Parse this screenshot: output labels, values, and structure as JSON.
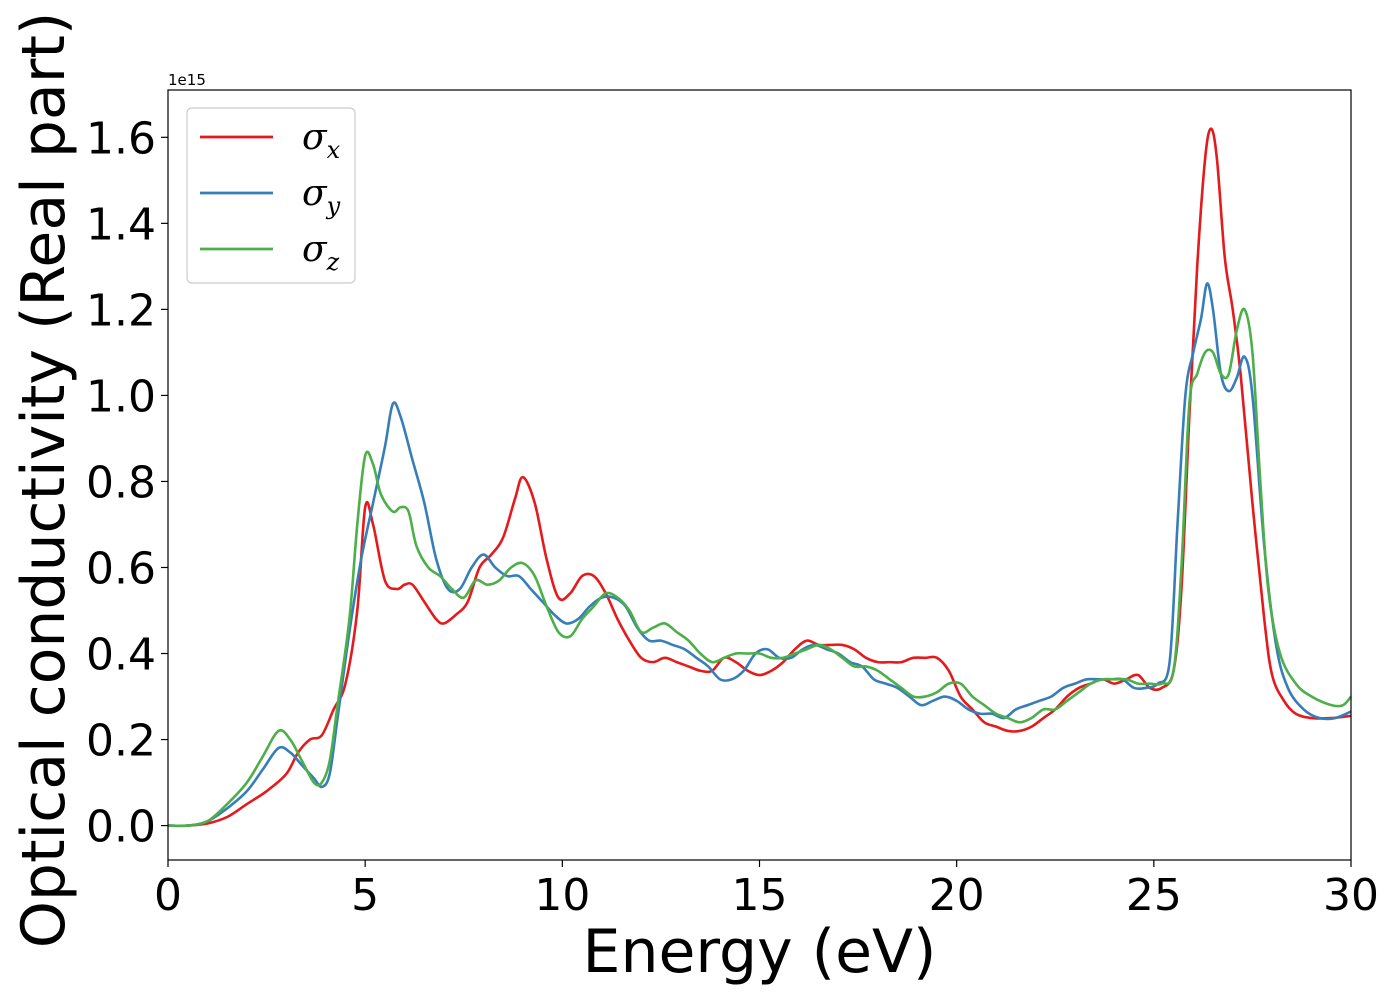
{
  "chart_data": {
    "type": "line",
    "title": "",
    "xlabel": "Energy (eV)",
    "ylabel": "Optical conductivity (Real part)",
    "y_offset_label": "1e15",
    "xlim": [
      0,
      30
    ],
    "ylim": [
      -0.08,
      1.71
    ],
    "xticks": [
      0,
      5,
      10,
      15,
      20,
      25,
      30
    ],
    "xtick_labels": [
      "0",
      "5",
      "10",
      "15",
      "20",
      "25",
      "30"
    ],
    "yticks": [
      0.0,
      0.2,
      0.4,
      0.6,
      0.8,
      1.0,
      1.2,
      1.4,
      1.6
    ],
    "ytick_labels": [
      "0.0",
      "0.2",
      "0.4",
      "0.6",
      "0.8",
      "1.0",
      "1.2",
      "1.4",
      "1.6"
    ],
    "grid": false,
    "legend": {
      "placement": "top-left"
    },
    "series": [
      {
        "name": "σx",
        "legend_base": "σ",
        "legend_sub": "x",
        "color": "#e41a1c",
        "x": [
          0,
          0.5,
          1.0,
          1.5,
          2.0,
          2.5,
          3.0,
          3.3,
          3.6,
          3.9,
          4.2,
          4.5,
          4.8,
          5.0,
          5.2,
          5.5,
          5.8,
          6.0,
          6.2,
          6.5,
          6.8,
          7.0,
          7.3,
          7.6,
          7.9,
          8.2,
          8.5,
          8.8,
          9.0,
          9.3,
          9.6,
          9.9,
          10.2,
          10.5,
          10.8,
          11.1,
          11.4,
          11.7,
          12.0,
          12.3,
          12.6,
          12.9,
          13.2,
          13.5,
          13.8,
          14.1,
          14.4,
          14.7,
          15.0,
          15.3,
          15.6,
          15.9,
          16.2,
          16.5,
          16.8,
          17.1,
          17.4,
          17.7,
          18.0,
          18.3,
          18.6,
          18.9,
          19.2,
          19.5,
          19.8,
          20.1,
          20.4,
          20.7,
          21.0,
          21.3,
          21.6,
          21.9,
          22.2,
          22.5,
          22.8,
          23.1,
          23.4,
          23.7,
          24.0,
          24.3,
          24.6,
          24.9,
          25.2,
          25.5,
          25.7,
          25.9,
          26.1,
          26.3,
          26.45,
          26.6,
          26.8,
          27.0,
          27.2,
          27.5,
          27.8,
          28.0,
          28.3,
          28.6,
          29.0,
          29.5,
          30.0
        ],
        "y": [
          0.0,
          0.0,
          0.005,
          0.02,
          0.05,
          0.08,
          0.12,
          0.17,
          0.2,
          0.21,
          0.27,
          0.33,
          0.5,
          0.74,
          0.7,
          0.57,
          0.55,
          0.56,
          0.56,
          0.52,
          0.48,
          0.47,
          0.49,
          0.52,
          0.6,
          0.63,
          0.67,
          0.76,
          0.81,
          0.75,
          0.62,
          0.53,
          0.54,
          0.58,
          0.58,
          0.54,
          0.48,
          0.43,
          0.39,
          0.38,
          0.39,
          0.38,
          0.37,
          0.36,
          0.36,
          0.39,
          0.38,
          0.36,
          0.35,
          0.36,
          0.38,
          0.41,
          0.43,
          0.42,
          0.42,
          0.42,
          0.41,
          0.39,
          0.38,
          0.38,
          0.38,
          0.39,
          0.39,
          0.39,
          0.36,
          0.3,
          0.27,
          0.24,
          0.23,
          0.22,
          0.22,
          0.23,
          0.25,
          0.27,
          0.3,
          0.32,
          0.33,
          0.34,
          0.33,
          0.34,
          0.35,
          0.32,
          0.32,
          0.36,
          0.55,
          0.95,
          1.3,
          1.55,
          1.62,
          1.55,
          1.32,
          1.2,
          1.05,
          0.75,
          0.48,
          0.35,
          0.29,
          0.26,
          0.25,
          0.25,
          0.255
        ]
      },
      {
        "name": "σy",
        "legend_base": "σ",
        "legend_sub": "y",
        "color": "#377eb8",
        "x": [
          0,
          0.5,
          1.0,
          1.5,
          2.0,
          2.4,
          2.8,
          3.1,
          3.4,
          3.7,
          3.9,
          4.1,
          4.3,
          4.6,
          4.9,
          5.2,
          5.5,
          5.7,
          5.9,
          6.2,
          6.5,
          6.8,
          7.1,
          7.4,
          7.7,
          8.0,
          8.3,
          8.6,
          8.9,
          9.2,
          9.5,
          9.8,
          10.1,
          10.4,
          10.7,
          11.0,
          11.3,
          11.6,
          11.9,
          12.2,
          12.5,
          12.8,
          13.1,
          13.4,
          13.7,
          14.0,
          14.3,
          14.6,
          14.9,
          15.2,
          15.5,
          15.8,
          16.1,
          16.4,
          16.7,
          17.0,
          17.3,
          17.6,
          17.9,
          18.2,
          18.5,
          18.8,
          19.1,
          19.4,
          19.7,
          20.0,
          20.3,
          20.6,
          20.9,
          21.2,
          21.5,
          21.8,
          22.1,
          22.4,
          22.7,
          23.0,
          23.3,
          23.6,
          23.9,
          24.2,
          24.5,
          24.8,
          25.1,
          25.4,
          25.6,
          25.8,
          26.0,
          26.2,
          26.35,
          26.5,
          26.7,
          26.9,
          27.1,
          27.3,
          27.5,
          27.8,
          28.1,
          28.4,
          28.8,
          29.2,
          29.6,
          30.0
        ],
        "y": [
          0.0,
          0.0,
          0.01,
          0.04,
          0.08,
          0.13,
          0.18,
          0.17,
          0.14,
          0.11,
          0.09,
          0.12,
          0.25,
          0.45,
          0.62,
          0.75,
          0.88,
          0.98,
          0.95,
          0.85,
          0.75,
          0.62,
          0.55,
          0.55,
          0.6,
          0.63,
          0.6,
          0.58,
          0.58,
          0.55,
          0.52,
          0.49,
          0.47,
          0.48,
          0.51,
          0.53,
          0.53,
          0.51,
          0.46,
          0.43,
          0.43,
          0.42,
          0.41,
          0.39,
          0.37,
          0.34,
          0.34,
          0.36,
          0.4,
          0.41,
          0.39,
          0.39,
          0.41,
          0.42,
          0.41,
          0.4,
          0.38,
          0.37,
          0.34,
          0.33,
          0.32,
          0.3,
          0.28,
          0.29,
          0.3,
          0.29,
          0.27,
          0.26,
          0.26,
          0.25,
          0.27,
          0.28,
          0.29,
          0.3,
          0.32,
          0.33,
          0.34,
          0.34,
          0.34,
          0.34,
          0.32,
          0.32,
          0.33,
          0.38,
          0.7,
          1.0,
          1.1,
          1.18,
          1.26,
          1.2,
          1.05,
          1.01,
          1.04,
          1.09,
          1.0,
          0.65,
          0.42,
          0.32,
          0.27,
          0.25,
          0.25,
          0.265
        ]
      },
      {
        "name": "σz",
        "legend_base": "σ",
        "legend_sub": "z",
        "color": "#4daf4a",
        "x": [
          0,
          0.5,
          1.0,
          1.5,
          2.0,
          2.4,
          2.8,
          3.1,
          3.4,
          3.7,
          3.9,
          4.1,
          4.3,
          4.6,
          4.8,
          5.0,
          5.2,
          5.4,
          5.7,
          5.9,
          6.1,
          6.3,
          6.6,
          6.9,
          7.2,
          7.5,
          7.8,
          8.1,
          8.4,
          8.7,
          9.0,
          9.3,
          9.6,
          9.9,
          10.2,
          10.5,
          10.8,
          11.1,
          11.4,
          11.7,
          12.0,
          12.3,
          12.6,
          12.9,
          13.2,
          13.5,
          13.8,
          14.1,
          14.4,
          14.7,
          15.0,
          15.3,
          15.6,
          15.9,
          16.2,
          16.5,
          16.8,
          17.1,
          17.4,
          17.7,
          18.0,
          18.3,
          18.6,
          18.9,
          19.2,
          19.5,
          19.8,
          20.1,
          20.4,
          20.7,
          21.0,
          21.3,
          21.6,
          21.9,
          22.2,
          22.5,
          22.8,
          23.1,
          23.4,
          23.7,
          24.0,
          24.3,
          24.6,
          24.9,
          25.2,
          25.5,
          25.7,
          25.9,
          26.1,
          26.3,
          26.5,
          26.7,
          26.9,
          27.1,
          27.3,
          27.5,
          27.7,
          27.9,
          28.2,
          28.6,
          29.0,
          29.5,
          29.8,
          30.0
        ],
        "y": [
          0.0,
          0.0,
          0.01,
          0.05,
          0.1,
          0.16,
          0.22,
          0.2,
          0.15,
          0.1,
          0.1,
          0.15,
          0.28,
          0.48,
          0.7,
          0.86,
          0.84,
          0.77,
          0.73,
          0.74,
          0.73,
          0.65,
          0.6,
          0.58,
          0.55,
          0.53,
          0.57,
          0.56,
          0.57,
          0.6,
          0.61,
          0.58,
          0.51,
          0.45,
          0.44,
          0.48,
          0.51,
          0.54,
          0.53,
          0.5,
          0.45,
          0.46,
          0.47,
          0.45,
          0.43,
          0.4,
          0.38,
          0.39,
          0.4,
          0.4,
          0.4,
          0.39,
          0.39,
          0.4,
          0.41,
          0.42,
          0.41,
          0.39,
          0.37,
          0.37,
          0.36,
          0.34,
          0.32,
          0.3,
          0.3,
          0.31,
          0.33,
          0.33,
          0.3,
          0.28,
          0.26,
          0.25,
          0.24,
          0.25,
          0.27,
          0.27,
          0.29,
          0.31,
          0.33,
          0.34,
          0.34,
          0.34,
          0.33,
          0.33,
          0.33,
          0.36,
          0.6,
          0.98,
          1.05,
          1.1,
          1.1,
          1.05,
          1.05,
          1.15,
          1.2,
          1.1,
          0.8,
          0.55,
          0.4,
          0.33,
          0.3,
          0.28,
          0.28,
          0.3
        ]
      }
    ]
  }
}
